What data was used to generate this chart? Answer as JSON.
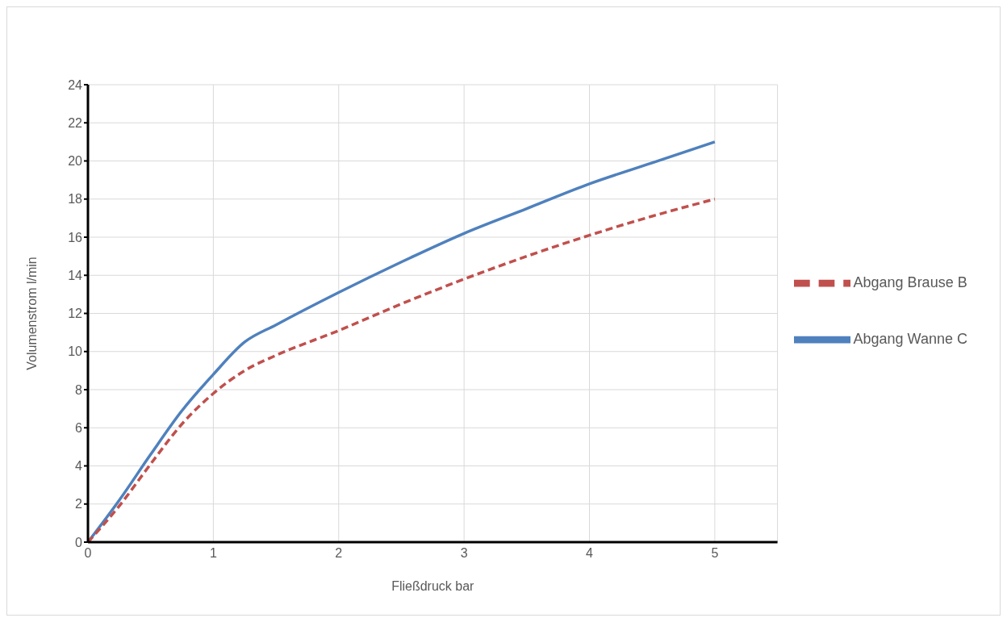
{
  "chart_data": {
    "type": "line",
    "xlabel": "Fließdruck bar",
    "ylabel": "Volumenstrom l/min",
    "xlim": [
      0,
      5.5
    ],
    "xticks": [
      0,
      1,
      2,
      3,
      4,
      5
    ],
    "ylim": [
      0,
      24
    ],
    "yticks": [
      0,
      2,
      4,
      6,
      8,
      10,
      12,
      14,
      16,
      18,
      20,
      22,
      24
    ],
    "grid": true,
    "legend": "right",
    "marker": "none",
    "x": [
      0,
      0.25,
      0.5,
      0.75,
      1,
      1.25,
      1.5,
      2,
      2.5,
      3,
      3.5,
      4,
      4.5,
      5
    ],
    "series": [
      {
        "name": "Abgang Wanne C",
        "color": "#4f81bd",
        "line_style": "solid",
        "values": [
          0,
          2.2,
          4.6,
          6.9,
          8.8,
          10.5,
          11.4,
          13.1,
          14.7,
          16.2,
          17.5,
          18.8,
          19.9,
          21
        ]
      },
      {
        "name": "Abgang Brause B",
        "color": "#c0504d",
        "line_style": "dashed",
        "values": [
          0,
          1.9,
          4.1,
          6.2,
          7.8,
          9.0,
          9.8,
          11.1,
          12.5,
          13.8,
          15.0,
          16.1,
          17.1,
          18
        ]
      }
    ]
  }
}
